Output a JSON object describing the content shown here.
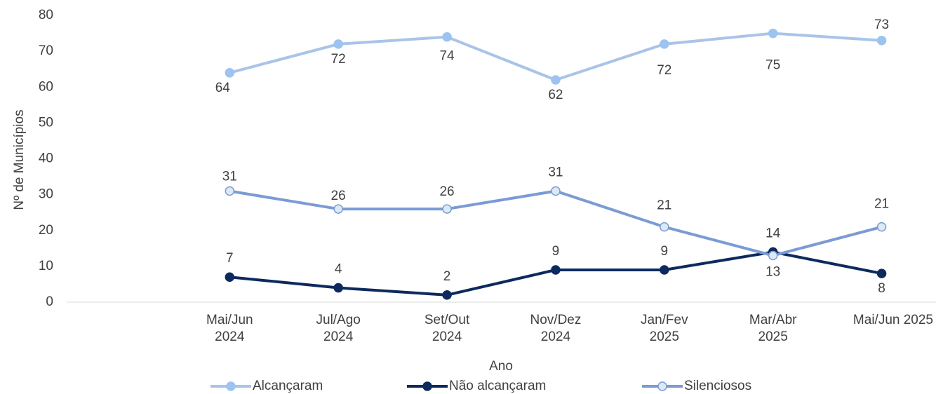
{
  "chart_data": {
    "type": "line",
    "x_label": "Ano",
    "y_label": "Nº de Municípios",
    "categories": [
      null,
      "Mai/Jun 2024",
      "Jul/Ago 2024",
      "Set/Out 2024",
      "Nov/Dez 2024",
      "Jan/Fev 2025",
      "Mar/Abr 2025",
      "Mai/Jun 2025"
    ],
    "series": [
      {
        "name": "Alcançaram",
        "color": "#a9c4e8",
        "marker_color": "#9dc3f0",
        "values": [
          null,
          64,
          72,
          74,
          62,
          72,
          75,
          73
        ]
      },
      {
        "name": "Não alcançaram",
        "color": "#0d2a5e",
        "marker_color": "#0d2a5e",
        "values": [
          null,
          7,
          4,
          2,
          9,
          9,
          14,
          8
        ]
      },
      {
        "name": "Silenciosos",
        "color": "#7b9bd4",
        "marker_color": "#dbeaf5",
        "values": [
          null,
          31,
          26,
          26,
          31,
          21,
          13,
          21
        ]
      }
    ],
    "ylim": [
      0,
      80
    ],
    "yticks": [
      0,
      10,
      20,
      30,
      40,
      50,
      60,
      70,
      80
    ],
    "legend": "bottom"
  }
}
